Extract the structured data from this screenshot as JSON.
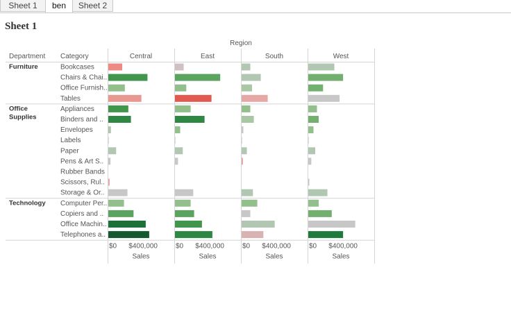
{
  "tabs": [
    {
      "label": "Sheet 1",
      "active": false
    },
    {
      "label": "ben",
      "active": true
    },
    {
      "label": "Sheet 2",
      "active": false
    }
  ],
  "sheet_title": "Sheet  1",
  "chart_data": {
    "type": "bar",
    "orientation": "horizontal",
    "column_header": "Region",
    "row_headers": [
      "Department",
      "Category"
    ],
    "regions": [
      "Central",
      "East",
      "South",
      "West"
    ],
    "xlabel": "Sales",
    "xlim": [
      0,
      750000
    ],
    "x_ticks": [
      0,
      400000
    ],
    "x_tick_labels": [
      "$0",
      "$400,000"
    ],
    "color_scale": "diverging red-gray-green (bar color encodes a second measure)",
    "departments": [
      {
        "name": "Furniture",
        "categories": [
          {
            "label": "Bookcases",
            "values": [
              160000,
              100000,
              100000,
              300000
            ],
            "colors": [
              "#ee8a85",
              "#cfc1c1",
              "#b2c7b2",
              "#b2c7b2"
            ]
          },
          {
            "label": "Chairs & Chai..",
            "values": [
              450000,
              520000,
              220000,
              400000
            ],
            "colors": [
              "#41954c",
              "#5ba45f",
              "#b2c7b2",
              "#73b06f"
            ]
          },
          {
            "label": "Office Furnish..",
            "values": [
              190000,
              130000,
              120000,
              170000
            ],
            "colors": [
              "#92bf8b",
              "#92bf8b",
              "#a9c7a4",
              "#73b06f"
            ]
          },
          {
            "label": "Tables",
            "values": [
              380000,
              420000,
              300000,
              360000
            ],
            "colors": [
              "#e99791",
              "#e05a4f",
              "#e5a8a4",
              "#c7c7c7"
            ]
          }
        ]
      },
      {
        "name": "Office Supplies",
        "categories": [
          {
            "label": "Appliances",
            "values": [
              230000,
              180000,
              100000,
              100000
            ],
            "colors": [
              "#41954c",
              "#92bf8b",
              "#92bf8b",
              "#92bf8b"
            ]
          },
          {
            "label": "Binders and ..",
            "values": [
              260000,
              340000,
              140000,
              120000
            ],
            "colors": [
              "#2e8843",
              "#2e8843",
              "#a9c7a4",
              "#73b06f"
            ]
          },
          {
            "label": "Envelopes",
            "values": [
              30000,
              60000,
              20000,
              60000
            ],
            "colors": [
              "#b2c7b2",
              "#92bf8b",
              "#c7c7c7",
              "#92bf8b"
            ]
          },
          {
            "label": "Labels",
            "values": [
              5000,
              5000,
              5000,
              5000
            ],
            "colors": [
              "#c7c7c7",
              "#c7c7c7",
              "#c7c7c7",
              "#c7c7c7"
            ]
          },
          {
            "label": "Paper",
            "values": [
              90000,
              90000,
              60000,
              80000
            ],
            "colors": [
              "#b2c7b2",
              "#b2c7b2",
              "#b2c7b2",
              "#b2c7b2"
            ]
          },
          {
            "label": "Pens & Art S..",
            "values": [
              25000,
              35000,
              15000,
              35000
            ],
            "colors": [
              "#c7c7c7",
              "#c7c7c7",
              "#e5a8a4",
              "#c7c7c7"
            ]
          },
          {
            "label": "Rubber Bands",
            "values": [
              0,
              0,
              0,
              0
            ],
            "colors": [
              "#c7c7c7",
              "#c7c7c7",
              "#c7c7c7",
              "#c7c7c7"
            ]
          },
          {
            "label": "Scissors, Rul..",
            "values": [
              15000,
              0,
              0,
              12000
            ],
            "colors": [
              "#e5a8a4",
              "#c7c7c7",
              "#c7c7c7",
              "#c7c7c7"
            ]
          },
          {
            "label": "Storage & Or..",
            "values": [
              220000,
              210000,
              130000,
              220000
            ],
            "colors": [
              "#c7c7c7",
              "#c7c7c7",
              "#b2c7b2",
              "#b2c7b2"
            ]
          }
        ]
      },
      {
        "name": "Technology",
        "categories": [
          {
            "label": "Computer Per..",
            "values": [
              180000,
              180000,
              180000,
              120000
            ],
            "colors": [
              "#92bf8b",
              "#92bf8b",
              "#92bf8b",
              "#92bf8b"
            ]
          },
          {
            "label": "Copiers and ..",
            "values": [
              290000,
              220000,
              100000,
              270000
            ],
            "colors": [
              "#5ba45f",
              "#5ba45f",
              "#c7c7c7",
              "#73b06f"
            ]
          },
          {
            "label": "Office Machin..",
            "values": [
              430000,
              310000,
              380000,
              540000
            ],
            "colors": [
              "#1d703a",
              "#41954c",
              "#b2c7b2",
              "#c7c7c7"
            ]
          },
          {
            "label": "Telephones a..",
            "values": [
              470000,
              430000,
              250000,
              400000
            ],
            "colors": [
              "#145a2e",
              "#2e8843",
              "#d9b2b2",
              "#1f7a3e"
            ]
          }
        ]
      }
    ]
  }
}
